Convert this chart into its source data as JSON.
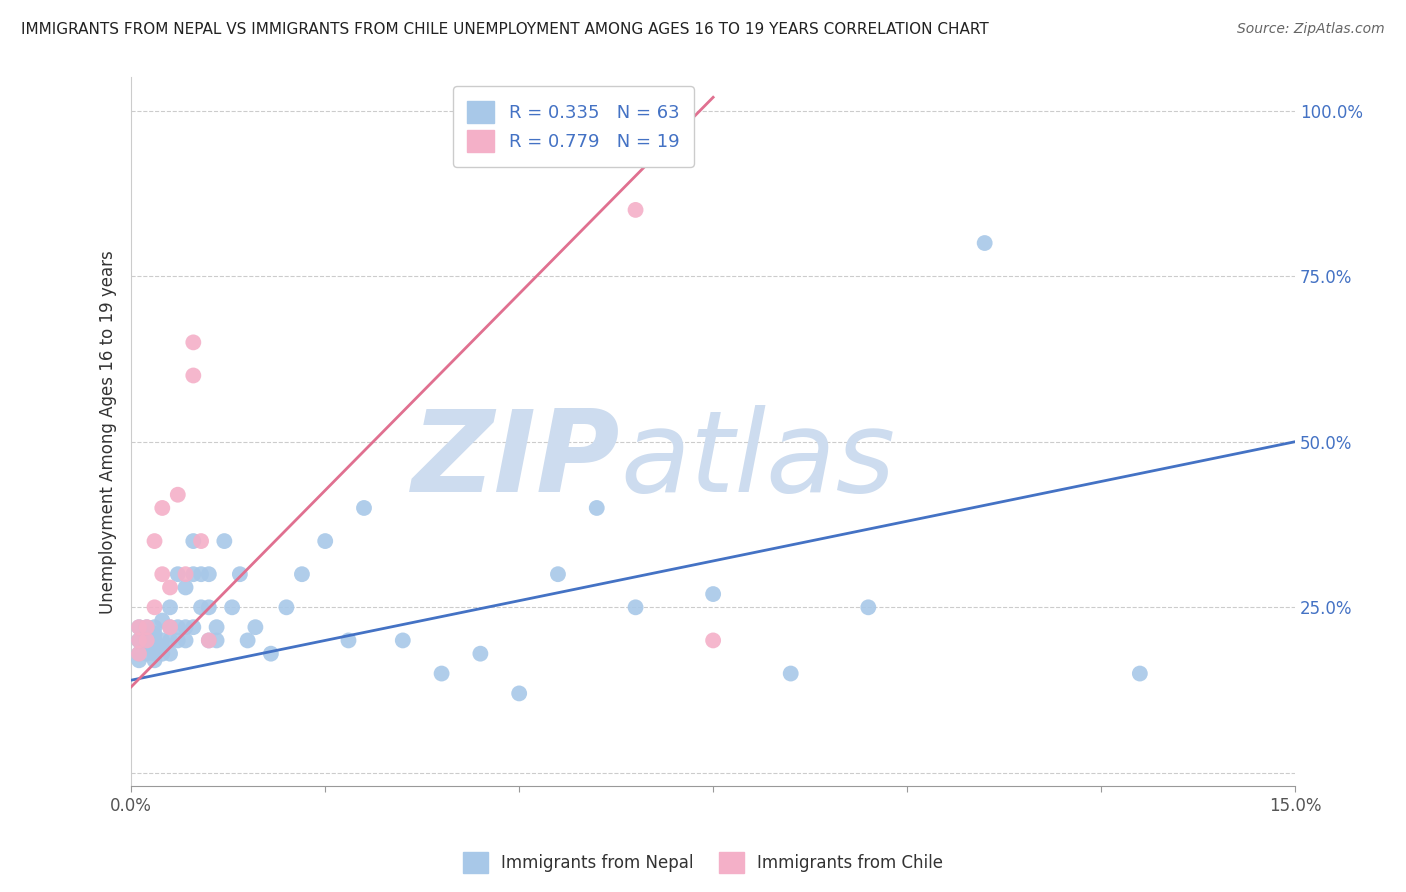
{
  "title": "IMMIGRANTS FROM NEPAL VS IMMIGRANTS FROM CHILE UNEMPLOYMENT AMONG AGES 16 TO 19 YEARS CORRELATION CHART",
  "source": "Source: ZipAtlas.com",
  "ylabel": "Unemployment Among Ages 16 to 19 years",
  "xlim": [
    0.0,
    0.15
  ],
  "ylim": [
    -0.02,
    1.05
  ],
  "nepal_color": "#a8c8e8",
  "chile_color": "#f4b0c8",
  "nepal_line_color": "#4472c4",
  "chile_line_color": "#e07090",
  "nepal_R": 0.335,
  "nepal_N": 63,
  "chile_R": 0.779,
  "chile_N": 19,
  "watermark_zip": "ZIP",
  "watermark_atlas": "atlas",
  "watermark_color": "#cddcef",
  "nepal_legend": "Immigrants from Nepal",
  "chile_legend": "Immigrants from Chile",
  "background_color": "#ffffff",
  "nepal_x": [
    0.001,
    0.001,
    0.001,
    0.001,
    0.001,
    0.002,
    0.002,
    0.002,
    0.002,
    0.002,
    0.003,
    0.003,
    0.003,
    0.003,
    0.003,
    0.003,
    0.004,
    0.004,
    0.004,
    0.004,
    0.005,
    0.005,
    0.005,
    0.005,
    0.006,
    0.006,
    0.006,
    0.007,
    0.007,
    0.007,
    0.008,
    0.008,
    0.008,
    0.009,
    0.009,
    0.01,
    0.01,
    0.01,
    0.011,
    0.011,
    0.012,
    0.013,
    0.014,
    0.015,
    0.016,
    0.018,
    0.02,
    0.022,
    0.025,
    0.028,
    0.03,
    0.035,
    0.04,
    0.045,
    0.05,
    0.055,
    0.06,
    0.065,
    0.075,
    0.085,
    0.095,
    0.11,
    0.13
  ],
  "nepal_y": [
    0.18,
    0.2,
    0.22,
    0.17,
    0.2,
    0.19,
    0.21,
    0.18,
    0.2,
    0.22,
    0.2,
    0.18,
    0.22,
    0.19,
    0.17,
    0.21,
    0.2,
    0.18,
    0.23,
    0.19,
    0.25,
    0.22,
    0.2,
    0.18,
    0.3,
    0.2,
    0.22,
    0.28,
    0.22,
    0.2,
    0.3,
    0.35,
    0.22,
    0.25,
    0.3,
    0.2,
    0.25,
    0.3,
    0.2,
    0.22,
    0.35,
    0.25,
    0.3,
    0.2,
    0.22,
    0.18,
    0.25,
    0.3,
    0.35,
    0.2,
    0.4,
    0.2,
    0.15,
    0.18,
    0.12,
    0.3,
    0.4,
    0.25,
    0.27,
    0.15,
    0.25,
    0.8,
    0.15
  ],
  "chile_x": [
    0.001,
    0.001,
    0.001,
    0.002,
    0.002,
    0.003,
    0.003,
    0.004,
    0.004,
    0.005,
    0.005,
    0.006,
    0.007,
    0.008,
    0.008,
    0.009,
    0.01,
    0.065,
    0.075
  ],
  "chile_y": [
    0.18,
    0.2,
    0.22,
    0.2,
    0.22,
    0.25,
    0.35,
    0.3,
    0.4,
    0.22,
    0.28,
    0.42,
    0.3,
    0.6,
    0.65,
    0.35,
    0.2,
    0.85,
    0.2
  ],
  "nepal_line_x": [
    0.0,
    0.15
  ],
  "nepal_line_y": [
    0.14,
    0.5
  ],
  "chile_line_x": [
    0.0,
    0.075
  ],
  "chile_line_y": [
    0.13,
    1.02
  ]
}
